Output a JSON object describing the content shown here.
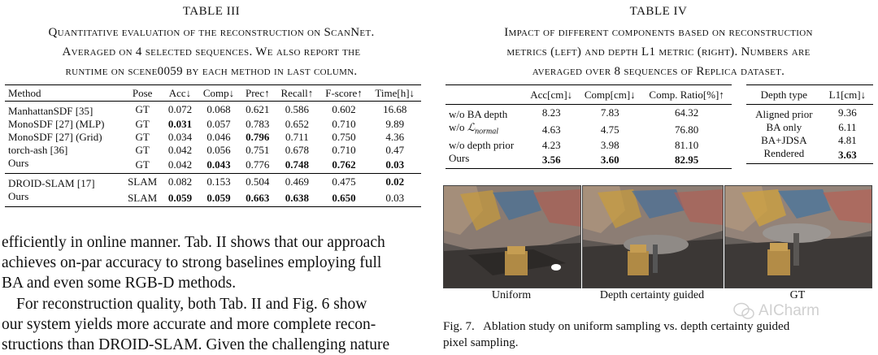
{
  "table3": {
    "title": "TABLE III",
    "caption_lines": [
      "Quantitative evaluation of the reconstruction on ScanNet.",
      "Averaged on 4 selected sequences. We also report the",
      "runtime on scene0059 by each method in last column."
    ],
    "headers": [
      "Method",
      "Pose",
      "Acc↓",
      "Comp↓",
      "Prec↑",
      "Recall↑",
      "F-score↑",
      "Time[h]↓"
    ],
    "group1": [
      [
        "ManhattanSDF [35]",
        "GT",
        "0.072",
        "0.068",
        "0.621",
        "0.586",
        "0.602",
        "16.68"
      ],
      [
        "MonoSDF [27] (MLP)",
        "GT",
        "0.031",
        "0.057",
        "0.783",
        "0.652",
        "0.710",
        "9.89"
      ],
      [
        "MonoSDF [27] (Grid)",
        "GT",
        "0.034",
        "0.046",
        "0.796",
        "0.711",
        "0.750",
        "4.36"
      ],
      [
        "torch-ash [36]",
        "GT",
        "0.042",
        "0.056",
        "0.751",
        "0.678",
        "0.710",
        "0.47"
      ],
      [
        "Ours",
        "GT",
        "0.042",
        "0.043",
        "0.776",
        "0.748",
        "0.762",
        "0.03"
      ]
    ],
    "group2": [
      [
        "DROID-SLAM [17]",
        "SLAM",
        "0.082",
        "0.153",
        "0.504",
        "0.469",
        "0.475",
        "0.02"
      ],
      [
        "Ours",
        "SLAM",
        "0.059",
        "0.059",
        "0.663",
        "0.638",
        "0.650",
        "0.03"
      ]
    ]
  },
  "body_text": {
    "para1": [
      "efficiently in online manner. Tab. II shows that our approach",
      "achieves on-par accuracy to strong baselines employing full",
      "BA and even some RGB-D methods."
    ],
    "para2": [
      "For reconstruction quality, both Tab. II and Fig. 6 show",
      "our system yields more accurate and more complete recon-",
      "structions than DROID-SLAM. Given the challenging nature"
    ]
  },
  "table4": {
    "title": "TABLE IV",
    "caption_lines": [
      "Impact of different components based on reconstruction",
      "metrics (left) and depth L1 metric (right). Numbers are",
      "averaged over 8 sequences of Replica dataset."
    ],
    "left_headers": [
      "",
      "Acc[cm]↓",
      "Comp[cm]↓",
      "Comp. Ratio[%]↑"
    ],
    "left_rows": [
      [
        "w/o BA depth",
        "8.23",
        "7.83",
        "64.32"
      ],
      [
        "w/o ",
        "4.63",
        "4.75",
        "76.80"
      ],
      [
        "w/o depth prior",
        "4.23",
        "3.98",
        "81.10"
      ],
      [
        "Ours",
        "3.56",
        "3.60",
        "82.95"
      ]
    ],
    "loss_symbol": "ℒ",
    "loss_subscript": "normal",
    "right_headers": [
      "Depth type",
      "L1[cm]↓"
    ],
    "right_rows": [
      [
        "Aligned prior",
        "9.36"
      ],
      [
        "BA only",
        "6.11"
      ],
      [
        "BA+JDSA",
        "4.81"
      ],
      [
        "Rendered",
        "3.63"
      ]
    ]
  },
  "figure7": {
    "labels": [
      "Uniform",
      "Depth certainty guided",
      "GT"
    ],
    "caption_lines": [
      "Fig. 7.   Ablation study on uniform sampling vs. depth certainty guided",
      "pixel sampling."
    ],
    "watermark": "AICharm"
  }
}
